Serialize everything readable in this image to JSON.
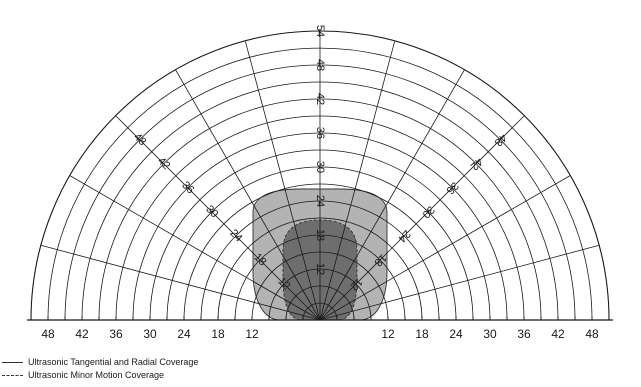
{
  "diagram": {
    "radial_labels": [
      "12",
      "18",
      "24",
      "30",
      "36",
      "42",
      "48",
      "54"
    ],
    "axis_labels_left": [
      "48",
      "42",
      "36",
      "30",
      "24",
      "18",
      "12"
    ],
    "axis_labels_right": [
      "12",
      "18",
      "24",
      "30",
      "36",
      "42",
      "48"
    ],
    "colors": {
      "grid": "#1a1a1a",
      "tangential_radial_coverage_fill": "#b3b3b3",
      "minor_motion_coverage_fill": "#6e6e6e"
    }
  },
  "legend": {
    "items": [
      {
        "label": "Ultrasonic Tangential and Radial Coverage",
        "line_style": "solid"
      },
      {
        "label": "Ultrasonic Minor Motion Coverage",
        "line_style": "dashed"
      }
    ]
  }
}
